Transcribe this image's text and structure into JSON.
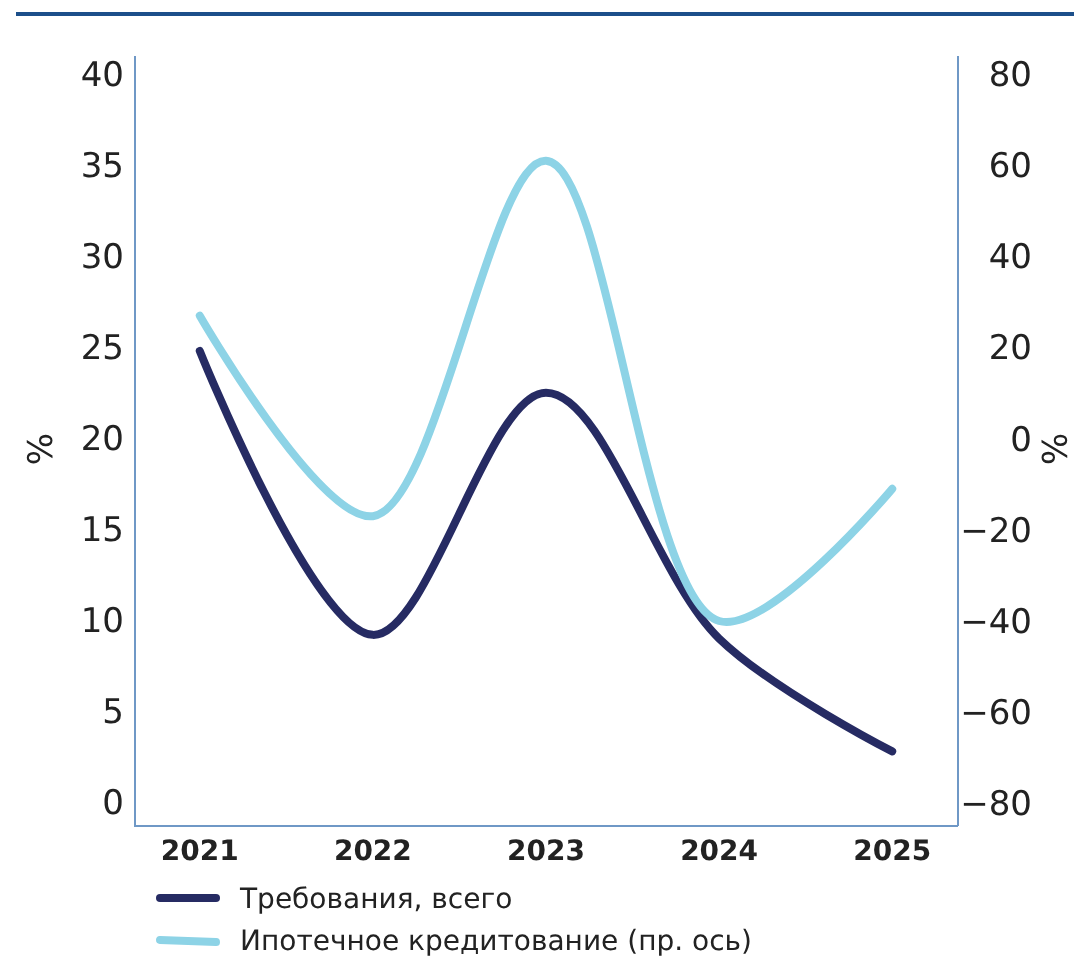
{
  "chart_data": {
    "type": "line",
    "categories": [
      "2021",
      "2022",
      "2023",
      "2024",
      "2025"
    ],
    "ylabel": "%",
    "y2label": "%",
    "ylim": [
      -1.3,
      41
    ],
    "yticks": [
      0,
      5,
      10,
      15,
      20,
      25,
      30,
      35,
      40
    ],
    "y2lim": [
      -85,
      84
    ],
    "y2ticks": [
      {
        "value": -80,
        "label": "−80"
      },
      {
        "value": -60,
        "label": "−60"
      },
      {
        "value": -40,
        "label": "−40"
      },
      {
        "value": -20,
        "label": "−20"
      },
      0,
      20,
      40,
      60,
      80
    ],
    "series": [
      {
        "name": "Требования, всего",
        "color": "#262b63",
        "values": [
          24.8,
          9.2,
          22.5,
          9.0,
          2.8
        ]
      },
      {
        "name": "Ипотечное кредитование (пр. ось)",
        "color": "#8dd3e6",
        "axis": "y2",
        "values": [
          27,
          -17,
          61,
          -40,
          -11
        ]
      }
    ],
    "grid": false,
    "legend": "bottom",
    "line_style": "solid",
    "marker": "none"
  }
}
